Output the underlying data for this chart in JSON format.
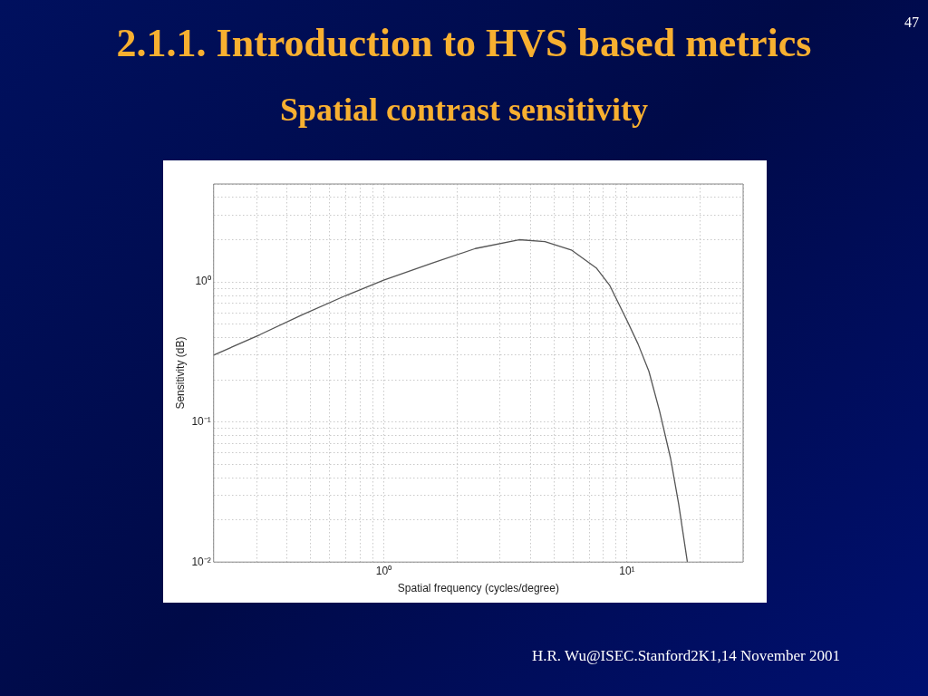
{
  "chart_data": {
    "type": "line",
    "title": "2.1.1. Introduction to HVS based metrics",
    "subtitle": "Spatial contrast sensitivity",
    "xlabel": "Spatial frequency (cycles/degree)",
    "ylabel": "Sensitivity (dB)",
    "annotations": [
      "47",
      "H.R. Wu@ISEC.Stanford2K1,14 November 2001"
    ],
    "x": [
      0.2,
      0.31,
      0.46,
      0.7,
      1.0,
      1.58,
      2.38,
      3.6,
      4.6,
      5.9,
      7.5,
      8.5,
      10,
      11.1,
      12.3,
      13.6,
      15.1,
      16.3,
      17.7
    ],
    "series": [
      {
        "color": "#555555",
        "values": [
          0.3,
          0.42,
          0.58,
          0.8,
          1.03,
          1.36,
          1.73,
          2.0,
          1.94,
          1.69,
          1.25,
          0.94,
          0.53,
          0.36,
          0.23,
          0.12,
          0.055,
          0.026,
          0.01
        ]
      }
    ],
    "xlim": [
      0.2,
      30
    ],
    "ylim": [
      0.01,
      5
    ],
    "xticks": [
      {
        "value": 0.2,
        "label": null
      },
      {
        "value": 0.3,
        "label": null
      },
      {
        "value": 0.4,
        "label": null
      },
      {
        "value": 0.5,
        "label": null
      },
      {
        "value": 0.6,
        "label": null
      },
      {
        "value": 0.7,
        "label": null
      },
      {
        "value": 0.8,
        "label": null
      },
      {
        "value": 0.9,
        "label": null
      },
      {
        "value": 1,
        "label": "10⁰"
      },
      {
        "value": 2,
        "label": null
      },
      {
        "value": 3,
        "label": null
      },
      {
        "value": 4,
        "label": null
      },
      {
        "value": 5,
        "label": null
      },
      {
        "value": 6,
        "label": null
      },
      {
        "value": 7,
        "label": null
      },
      {
        "value": 8,
        "label": null
      },
      {
        "value": 9,
        "label": null
      },
      {
        "value": 10,
        "label": "10¹"
      },
      {
        "value": 20,
        "label": null
      },
      {
        "value": 30,
        "label": null
      }
    ],
    "yticks": [
      {
        "value": 0.01,
        "label": "10⁻²"
      },
      {
        "value": 0.02,
        "label": null
      },
      {
        "value": 0.03,
        "label": null
      },
      {
        "value": 0.04,
        "label": null
      },
      {
        "value": 0.05,
        "label": null
      },
      {
        "value": 0.06,
        "label": null
      },
      {
        "value": 0.07,
        "label": null
      },
      {
        "value": 0.08,
        "label": null
      },
      {
        "value": 0.09,
        "label": null
      },
      {
        "value": 0.1,
        "label": "10⁻¹"
      },
      {
        "value": 0.2,
        "label": null
      },
      {
        "value": 0.3,
        "label": null
      },
      {
        "value": 0.4,
        "label": null
      },
      {
        "value": 0.5,
        "label": null
      },
      {
        "value": 0.6,
        "label": null
      },
      {
        "value": 0.7,
        "label": null
      },
      {
        "value": 0.8,
        "label": null
      },
      {
        "value": 0.9,
        "label": null
      },
      {
        "value": 1,
        "label": "10⁰"
      },
      {
        "value": 2,
        "label": null
      },
      {
        "value": 3,
        "label": null
      },
      {
        "value": 4,
        "label": null
      },
      {
        "value": 5,
        "label": null
      }
    ],
    "log": "xy",
    "grid": true,
    "legend": false,
    "marker": "none",
    "line_style": "solid"
  }
}
